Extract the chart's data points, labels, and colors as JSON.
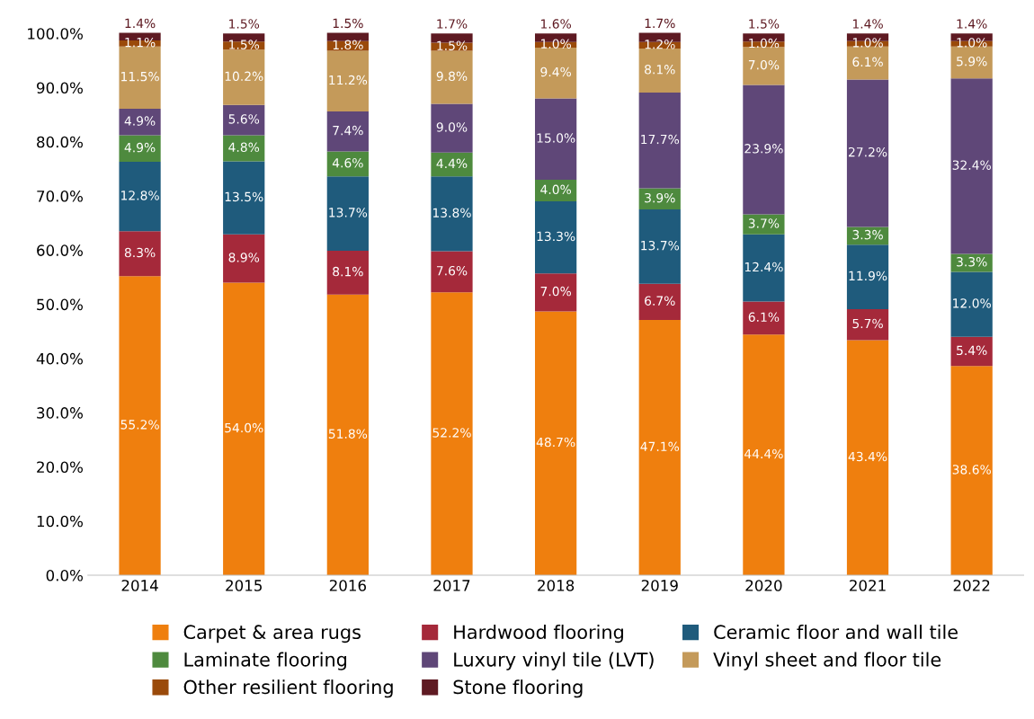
{
  "chart_data": {
    "type": "bar",
    "stacked": true,
    "categories": [
      "2014",
      "2015",
      "2016",
      "2017",
      "2018",
      "2019",
      "2020",
      "2021",
      "2022"
    ],
    "ylim": [
      0,
      100.2
    ],
    "yticks": [
      {
        "value": 0,
        "label": "0.0%"
      },
      {
        "value": 10,
        "label": "10.0%"
      },
      {
        "value": 20,
        "label": "20.0%"
      },
      {
        "value": 30,
        "label": "30.0%"
      },
      {
        "value": 40,
        "label": "40.0%"
      },
      {
        "value": 50,
        "label": "50.0%"
      },
      {
        "value": 60,
        "label": "60.0%"
      },
      {
        "value": 70,
        "label": "70.0%"
      },
      {
        "value": 80,
        "label": "80.0%"
      },
      {
        "value": 90,
        "label": "90.0%"
      },
      {
        "value": 100,
        "label": "100.0%"
      }
    ],
    "grid": false,
    "legend": "bottom",
    "series": [
      {
        "name": "Carpet & area rugs",
        "color": "#ef7f0e",
        "values": [
          55.2,
          54.0,
          51.8,
          52.2,
          48.7,
          47.1,
          44.4,
          43.4,
          38.6
        ],
        "value_labels": [
          "55.2%",
          "54.0%",
          "51.8%",
          "52.2%",
          "48.7%",
          "47.1%",
          "44.4%",
          "43.4%",
          "38.6%"
        ]
      },
      {
        "name": "Hardwood flooring",
        "color": "#a5293a",
        "values": [
          8.3,
          8.9,
          8.1,
          7.6,
          7.0,
          6.7,
          6.1,
          5.7,
          5.4
        ],
        "value_labels": [
          "8.3%",
          "8.9%",
          "8.1%",
          "7.6%",
          "7.0%",
          "6.7%",
          "6.1%",
          "5.7%",
          "5.4%"
        ]
      },
      {
        "name": "Ceramic floor and wall tile",
        "color": "#1f5b7c",
        "values": [
          12.8,
          13.5,
          13.7,
          13.8,
          13.3,
          13.7,
          12.4,
          11.9,
          12.0
        ],
        "value_labels": [
          "12.8%",
          "13.5%",
          "13.7%",
          "13.8%",
          "13.3%",
          "13.7%",
          "12.4%",
          "11.9%",
          "12.0%"
        ]
      },
      {
        "name": "Laminate flooring",
        "color": "#4e8a3e",
        "values": [
          4.9,
          4.8,
          4.6,
          4.4,
          4.0,
          3.9,
          3.7,
          3.3,
          3.3
        ],
        "value_labels": [
          "4.9%",
          "4.8%",
          "4.6%",
          "4.4%",
          "4.0%",
          "3.9%",
          "3.7%",
          "3.3%",
          "3.3%"
        ]
      },
      {
        "name": "Luxury vinyl tile (LVT)",
        "color": "#5f4778",
        "values": [
          4.9,
          5.6,
          7.4,
          9.0,
          15.0,
          17.7,
          23.9,
          27.2,
          32.4
        ],
        "value_labels": [
          "4.9%",
          "5.6%",
          "7.4%",
          "9.0%",
          "15.0%",
          "17.7%",
          "23.9%",
          "27.2%",
          "32.4%"
        ]
      },
      {
        "name": "Vinyl sheet and floor tile",
        "color": "#c49a5a",
        "values": [
          11.5,
          10.2,
          11.2,
          9.8,
          9.4,
          8.1,
          7.0,
          6.1,
          5.9
        ],
        "value_labels": [
          "11.5%",
          "10.2%",
          "11.2%",
          "9.8%",
          "9.4%",
          "8.1%",
          "7.0%",
          "6.1%",
          "5.9%"
        ]
      },
      {
        "name": "Other resilient flooring",
        "color": "#9a4a0a",
        "values": [
          1.1,
          1.5,
          1.8,
          1.5,
          1.0,
          1.2,
          1.0,
          1.0,
          1.0
        ],
        "value_labels": [
          "1.1%",
          "1.5%",
          "1.8%",
          "1.5%",
          "1.0%",
          "1.2%",
          "1.0%",
          "1.0%",
          "1.0%"
        ]
      },
      {
        "name": "Stone flooring",
        "color": "#5e1a22",
        "values": [
          1.4,
          1.5,
          1.5,
          1.7,
          1.6,
          1.7,
          1.5,
          1.4,
          1.4
        ],
        "value_labels": [
          "1.4%",
          "1.5%",
          "1.5%",
          "1.7%",
          "1.6%",
          "1.7%",
          "1.5%",
          "1.4%",
          "1.4%"
        ]
      }
    ]
  }
}
